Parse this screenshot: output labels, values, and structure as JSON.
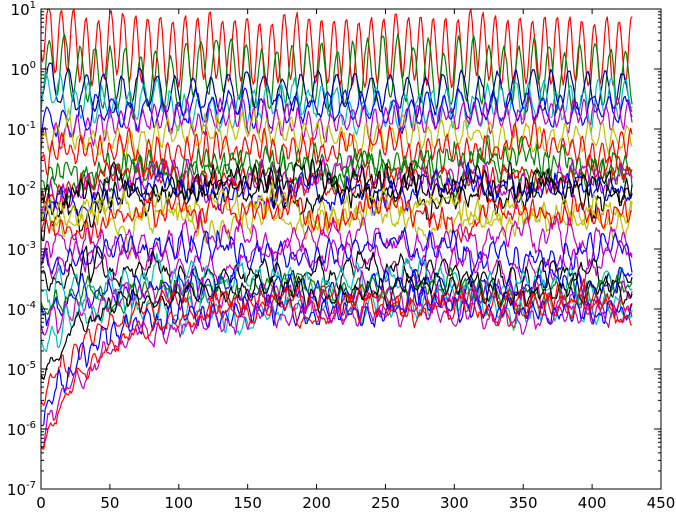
{
  "chart_data": {
    "type": "line",
    "title": "",
    "xlabel": "",
    "ylabel": "",
    "xlim": [
      0,
      450
    ],
    "ylim": [
      1e-07,
      10
    ],
    "yscale": "log",
    "grid": false,
    "legend": "none",
    "x_ticks": [
      "0",
      "50",
      "100",
      "150",
      "200",
      "250",
      "300",
      "350",
      "400",
      "450"
    ],
    "y_ticks": [
      {
        "base": "10",
        "exp": "-7"
      },
      {
        "base": "10",
        "exp": "-6"
      },
      {
        "base": "10",
        "exp": "-5"
      },
      {
        "base": "10",
        "exp": "-4"
      },
      {
        "base": "10",
        "exp": "-3"
      },
      {
        "base": "10",
        "exp": "-2"
      },
      {
        "base": "10",
        "exp": "-1"
      },
      {
        "base": "10",
        "exp": "0"
      },
      {
        "base": "10",
        "exp": "1"
      }
    ],
    "n_points": 430,
    "series": [
      {
        "color": "#ff0000",
        "start": 4.5,
        "level": 2.0,
        "amp": 0.55,
        "period": 9,
        "noise": 0.08,
        "rise": 0
      },
      {
        "color": "#008000",
        "start": 0.9,
        "level": 0.8,
        "amp": 0.5,
        "period": 11,
        "noise": 0.12,
        "rise": 0
      },
      {
        "color": "#00008b",
        "start": 0.6,
        "level": 0.4,
        "amp": 0.3,
        "period": 13,
        "noise": 0.1,
        "rise": 0
      },
      {
        "color": "#00bfbf",
        "start": 0.4,
        "level": 0.25,
        "amp": 0.25,
        "period": 10,
        "noise": 0.15,
        "rise": 0
      },
      {
        "color": "#0000ff",
        "start": 0.1,
        "level": 0.22,
        "amp": 0.22,
        "period": 12,
        "noise": 0.12,
        "rise": 0
      },
      {
        "color": "#bf00bf",
        "start": 0.05,
        "level": 0.15,
        "amp": 0.2,
        "period": 8,
        "noise": 0.12,
        "rise": 0
      },
      {
        "color": "#bfbf00",
        "start": 0.05,
        "level": 0.08,
        "amp": 0.2,
        "period": 9,
        "noise": 0.15,
        "rise": 0
      },
      {
        "color": "#ff0000",
        "start": 0.02,
        "level": 0.05,
        "amp": 0.18,
        "period": 7,
        "noise": 0.15,
        "rise": 0
      },
      {
        "color": "#008000",
        "start": 0.01,
        "level": 0.025,
        "amp": 0.15,
        "period": 6,
        "noise": 0.2,
        "rise": 0
      },
      {
        "color": "#008000",
        "start": 0.005,
        "level": 0.02,
        "amp": 0.12,
        "period": 8,
        "noise": 0.2,
        "rise": 0
      },
      {
        "color": "#ff0000",
        "start": 0.008,
        "level": 0.018,
        "amp": 0.12,
        "period": 7,
        "noise": 0.2,
        "rise": 0
      },
      {
        "color": "#bf00bf",
        "start": 0.004,
        "level": 0.015,
        "amp": 0.12,
        "period": 9,
        "noise": 0.2,
        "rise": 0
      },
      {
        "color": "#000000",
        "start": 0.005,
        "level": 0.012,
        "amp": 0.1,
        "period": 6,
        "noise": 0.22,
        "rise": 0
      },
      {
        "color": "#0000ff",
        "start": 0.003,
        "level": 0.01,
        "amp": 0.1,
        "period": 8,
        "noise": 0.2,
        "rise": 0
      },
      {
        "color": "#000000",
        "start": 0.002,
        "level": 0.008,
        "amp": 0.1,
        "period": 7,
        "noise": 0.22,
        "rise": 0
      },
      {
        "color": "#bfbf00",
        "start": 0.006,
        "level": 0.005,
        "amp": 0.1,
        "period": 9,
        "noise": 0.22,
        "rise": 0
      },
      {
        "color": "#bfbf00",
        "start": 0.004,
        "level": 0.003,
        "amp": 0.12,
        "period": 8,
        "noise": 0.2,
        "rise": 0
      },
      {
        "color": "#ff0000",
        "start": 0.002,
        "level": 0.004,
        "amp": 0.1,
        "period": 6,
        "noise": 0.2,
        "rise": 0
      },
      {
        "color": "#bf00bf",
        "start": 0.001,
        "level": 0.0015,
        "amp": 0.15,
        "period": 10,
        "noise": 0.2,
        "rise": 0
      },
      {
        "color": "#0000ff",
        "start": 0.0008,
        "level": 0.0009,
        "amp": 0.15,
        "period": 9,
        "noise": 0.18,
        "rise": 0
      },
      {
        "color": "#bf00bf",
        "start": 0.0005,
        "level": 0.0006,
        "amp": 0.15,
        "period": 11,
        "noise": 0.18,
        "rise": 0
      },
      {
        "color": "#000000",
        "start": 0.0003,
        "level": 0.0004,
        "amp": 0.15,
        "period": 10,
        "noise": 0.18,
        "rise": 0
      },
      {
        "color": "#00bfbf",
        "start": 0.0002,
        "level": 0.0003,
        "amp": 0.15,
        "period": 12,
        "noise": 0.18,
        "rise": 0
      },
      {
        "color": "#0000ff",
        "start": 0.0001,
        "level": 0.00025,
        "amp": 0.14,
        "period": 10,
        "noise": 0.16,
        "rise": 0
      },
      {
        "color": "#008000",
        "start": 8e-05,
        "level": 0.0002,
        "amp": 0.14,
        "period": 11,
        "noise": 0.16,
        "rise": 0
      },
      {
        "color": "#bf00bf",
        "start": 4e-05,
        "level": 0.00015,
        "amp": 0.15,
        "period": 9,
        "noise": 0.17,
        "rise": 0
      },
      {
        "color": "#00bfbf",
        "start": 3e-05,
        "level": 0.0001,
        "amp": 0.15,
        "period": 10,
        "noise": 0.17,
        "rise": 0
      },
      {
        "color": "#000000",
        "start": 1e-05,
        "level": 0.0002,
        "amp": 0.12,
        "period": 10,
        "noise": 0.16,
        "rise": 1
      },
      {
        "color": "#ff0000",
        "start": 3e-06,
        "level": 0.00015,
        "amp": 0.12,
        "period": 9,
        "noise": 0.16,
        "rise": 1
      },
      {
        "color": "#0000ff",
        "start": 1.5e-06,
        "level": 0.0001,
        "amp": 0.12,
        "period": 8,
        "noise": 0.16,
        "rise": 1
      },
      {
        "color": "#bf00bf",
        "start": 6e-07,
        "level": 8e-05,
        "amp": 0.12,
        "period": 10,
        "noise": 0.16,
        "rise": 1
      },
      {
        "color": "#ff0000",
        "start": 5e-07,
        "level": 9e-05,
        "amp": 0.12,
        "period": 11,
        "noise": 0.16,
        "rise": 1
      }
    ]
  }
}
